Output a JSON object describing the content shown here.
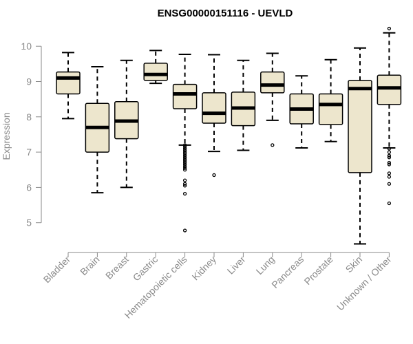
{
  "chart_data": {
    "type": "boxplot",
    "title": "ENSG00000151116 - UEVLD",
    "xlabel": "",
    "ylabel": "Expression",
    "ylim": [
      4.2,
      10.7
    ],
    "yticks": [
      5,
      6,
      7,
      8,
      9,
      10
    ],
    "box_color": "#EDE6CD",
    "categories": [
      "Bladder",
      "Brain",
      "Breast",
      "Gastric",
      "Hematopoietic cells",
      "Kidney",
      "Liver",
      "Lung",
      "Pancreas",
      "Prostate",
      "Skin",
      "Unknown / Other"
    ],
    "boxes": [
      {
        "category": "Bladder",
        "whisker_low": 7.95,
        "q1": 8.65,
        "median": 9.1,
        "q3": 9.27,
        "whisker_high": 9.82,
        "outliers": []
      },
      {
        "category": "Brain",
        "whisker_low": 5.85,
        "q1": 7.0,
        "median": 7.7,
        "q3": 8.38,
        "whisker_high": 9.42,
        "outliers": []
      },
      {
        "category": "Breast",
        "whisker_low": 6.0,
        "q1": 7.38,
        "median": 7.88,
        "q3": 8.43,
        "whisker_high": 9.6,
        "outliers": []
      },
      {
        "category": "Gastric",
        "whisker_low": 8.95,
        "q1": 9.03,
        "median": 9.2,
        "q3": 9.52,
        "whisker_high": 9.88,
        "outliers": []
      },
      {
        "category": "Hematopoietic cells",
        "whisker_low": 7.2,
        "q1": 8.23,
        "median": 8.65,
        "q3": 8.92,
        "whisker_high": 9.77,
        "outliers": [
          7.2,
          7.15,
          7.1,
          7.05,
          7.0,
          6.95,
          6.9,
          6.85,
          6.8,
          6.75,
          6.7,
          6.65,
          6.6,
          6.55,
          6.5,
          6.2,
          6.1,
          6.05,
          5.82,
          4.78
        ]
      },
      {
        "category": "Kidney",
        "whisker_low": 7.02,
        "q1": 7.82,
        "median": 8.1,
        "q3": 8.68,
        "whisker_high": 9.76,
        "outliers": [
          6.35
        ]
      },
      {
        "category": "Liver",
        "whisker_low": 7.05,
        "q1": 7.75,
        "median": 8.25,
        "q3": 8.7,
        "whisker_high": 9.6,
        "outliers": []
      },
      {
        "category": "Lung",
        "whisker_low": 7.9,
        "q1": 8.68,
        "median": 8.9,
        "q3": 9.27,
        "whisker_high": 9.8,
        "outliers": [
          7.2
        ]
      },
      {
        "category": "Pancreas",
        "whisker_low": 7.12,
        "q1": 7.8,
        "median": 8.22,
        "q3": 8.65,
        "whisker_high": 9.16,
        "outliers": []
      },
      {
        "category": "Prostate",
        "whisker_low": 7.3,
        "q1": 7.78,
        "median": 8.35,
        "q3": 8.65,
        "whisker_high": 9.62,
        "outliers": []
      },
      {
        "category": "Skin",
        "whisker_low": 4.4,
        "q1": 6.42,
        "median": 8.8,
        "q3": 9.03,
        "whisker_high": 9.95,
        "outliers": []
      },
      {
        "category": "Unknown / Other",
        "whisker_low": 7.12,
        "q1": 8.35,
        "median": 8.82,
        "q3": 9.18,
        "whisker_high": 10.38,
        "outliers": [
          10.5,
          7.1,
          6.9,
          6.85,
          6.7,
          6.65,
          6.4,
          6.3,
          6.1,
          5.55,
          7.0
        ]
      }
    ]
  }
}
